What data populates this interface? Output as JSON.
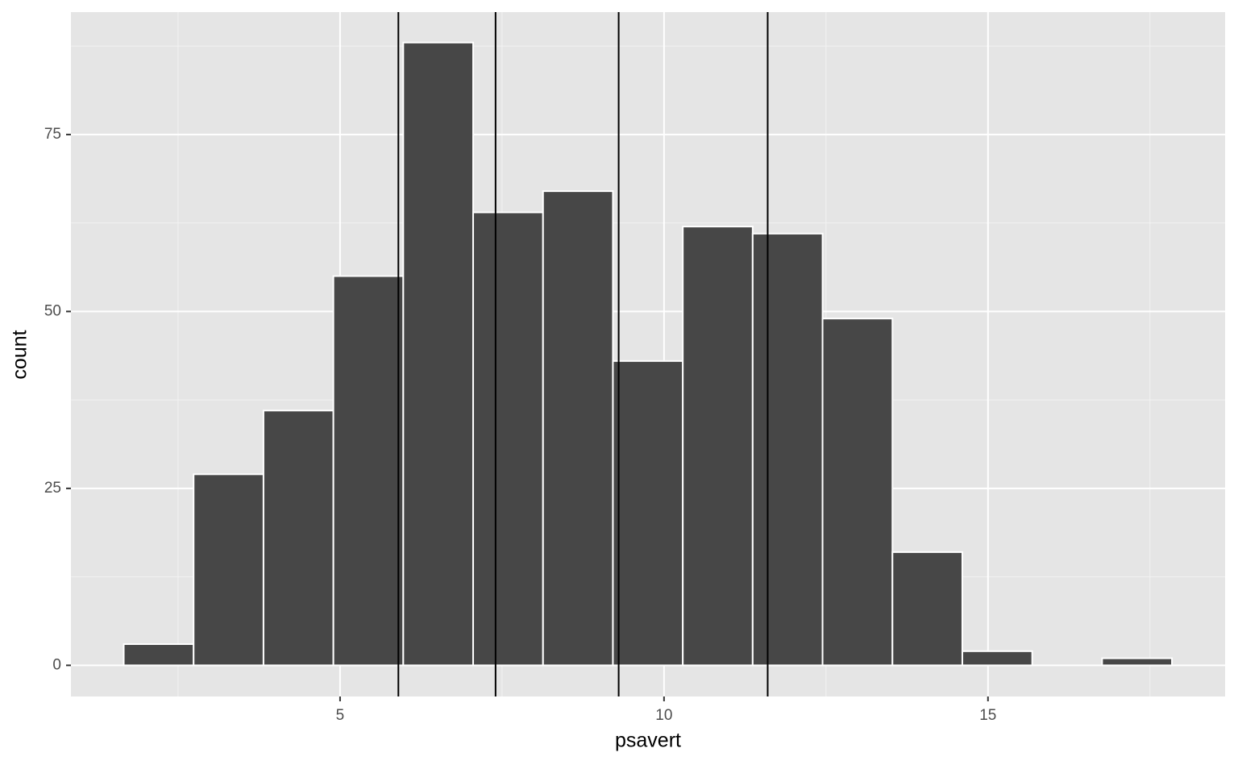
{
  "chart_data": {
    "type": "histogram",
    "x_label": "psavert",
    "y_label": "count",
    "bins": [
      1.661,
      2.7396,
      3.8182,
      4.8968,
      5.9754,
      7.054,
      8.1326,
      9.2112,
      10.2898,
      11.3684,
      12.447,
      13.5256,
      14.6042,
      15.6828,
      16.7614,
      17.84
    ],
    "counts": [
      3,
      27,
      36,
      55,
      88,
      64,
      67,
      43,
      62,
      61,
      49,
      16,
      2,
      0,
      1
    ],
    "color": "#474747",
    "vlines": [
      5.9,
      7.4,
      9.3,
      11.6
    ],
    "xlim": [
      0.846,
      18.66
    ],
    "xticks": [
      5,
      10,
      15
    ],
    "ylim": [
      -4.4,
      92.3
    ],
    "yticks": [
      0,
      25,
      50,
      75
    ],
    "grid": true
  }
}
